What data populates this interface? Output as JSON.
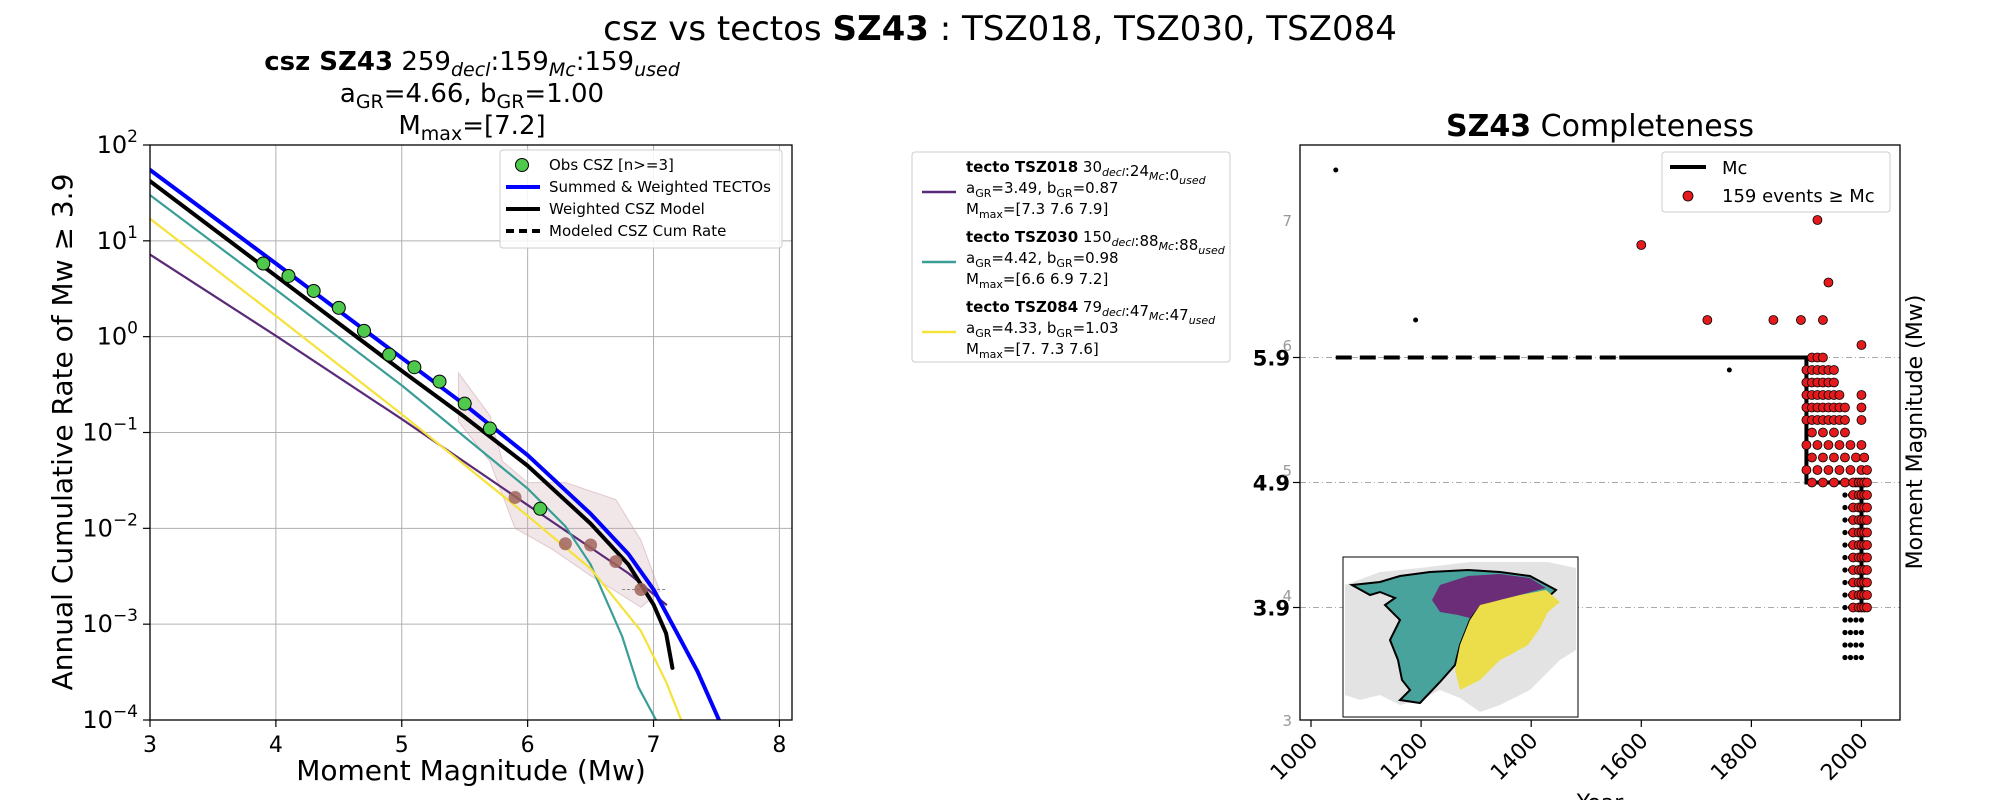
{
  "figure": {
    "title_prefix": "csz vs tectos ",
    "title_zone": "SZ43",
    "title_suffix": " : TSZ018, TSZ030, TSZ084"
  },
  "colors": {
    "obs": "#4ec94e",
    "obs_tecto": "#a0645a",
    "summed": "#0000ff",
    "weighted_csz": "#000000",
    "tecto_018": "#5a2a78",
    "tecto_030": "#3a9e96",
    "tecto_084": "#f5e23a",
    "red_points": "#e41a1c",
    "mc_line": "#000000",
    "inset_teal": "#47a39b",
    "inset_purple": "#6b2d78",
    "inset_yellow": "#ecdd4a",
    "inset_grey": "#e3e3e3"
  },
  "chart_data": [
    {
      "type": "line",
      "header": {
        "line1_bold": "csz SZ43",
        "line1_counts": [
          {
            "value": "259",
            "sub": "decl"
          },
          {
            "value": "159",
            "sub": "Mc"
          },
          {
            "value": "159",
            "sub": "used"
          }
        ],
        "line2": [
          {
            "text": "a",
            "sub": "GR",
            "value": "=4.66,"
          },
          {
            "text": "b",
            "sub": "GR",
            "value": "=1.00"
          }
        ],
        "line3": {
          "text": "M",
          "sub": "max",
          "value": "=[7.2]"
        }
      },
      "xlabel": "Moment Magnitude (Mw)",
      "ylabel": "Annual Cumulative Rate of Mw  ≥  3.9",
      "xlim": [
        3,
        8.1
      ],
      "ylim_log10": [
        -4,
        2
      ],
      "yscale": "log",
      "grid": true,
      "xticks": [
        "3",
        "4",
        "5",
        "6",
        "7",
        "8"
      ],
      "yticks": [
        {
          "base": "10",
          "exp": "2"
        },
        {
          "base": "10",
          "exp": "1"
        },
        {
          "base": "10",
          "exp": "0"
        },
        {
          "base": "10",
          "exp": "−1"
        },
        {
          "base": "10",
          "exp": "−2"
        },
        {
          "base": "10",
          "exp": "−3"
        },
        {
          "base": "10",
          "exp": "−4"
        }
      ],
      "legend_position": "top-right",
      "legend": [
        {
          "label": "Obs CSZ [n>=3]",
          "kind": "marker",
          "color_key": "obs"
        },
        {
          "label": "Summed & Weighted TECTOs",
          "kind": "line",
          "color_key": "summed"
        },
        {
          "label": "Weighted CSZ Model",
          "kind": "line",
          "color_key": "weighted_csz"
        },
        {
          "label": "Modeled CSZ Cum Rate",
          "kind": "dashed",
          "color_key": "weighted_csz"
        }
      ],
      "series": [
        {
          "key": "tsz018",
          "color_key": "tecto_018",
          "points": [
            [
              3.0,
              7.2
            ],
            [
              4.0,
              1.02
            ],
            [
              5.0,
              0.138
            ],
            [
              6.0,
              0.0175
            ],
            [
              6.8,
              0.0034
            ],
            [
              7.1,
              0.0016
            ]
          ]
        },
        {
          "key": "tsz030",
          "color_key": "tecto_030",
          "points": [
            [
              3.0,
              30
            ],
            [
              4.0,
              3.1
            ],
            [
              5.0,
              0.31
            ],
            [
              6.0,
              0.026
            ],
            [
              6.3,
              0.0105
            ],
            [
              6.5,
              0.0042
            ],
            [
              6.75,
              0.00075
            ],
            [
              6.88,
              0.00022
            ],
            [
              7.02,
              0.0001
            ]
          ]
        },
        {
          "key": "tsz084",
          "color_key": "tecto_084",
          "points": [
            [
              3.0,
              17
            ],
            [
              4.0,
              1.65
            ],
            [
              5.0,
              0.155
            ],
            [
              6.0,
              0.0135
            ],
            [
              6.5,
              0.0038
            ],
            [
              6.9,
              0.00085
            ],
            [
              7.1,
              0.00025
            ],
            [
              7.22,
              0.0001
            ]
          ]
        },
        {
          "key": "summed",
          "color_key": "summed",
          "width": 4,
          "points": [
            [
              3.0,
              55
            ],
            [
              4.0,
              5.8
            ],
            [
              5.0,
              0.6
            ],
            [
              5.5,
              0.195
            ],
            [
              6.0,
              0.058
            ],
            [
              6.5,
              0.0142
            ],
            [
              6.8,
              0.0054
            ],
            [
              7.0,
              0.0023
            ],
            [
              7.2,
              0.00075
            ],
            [
              7.35,
              0.00032
            ],
            [
              7.52,
              0.0001
            ]
          ]
        },
        {
          "key": "weighted_csz",
          "color_key": "weighted_csz",
          "width": 4,
          "points": [
            [
              3.0,
              42
            ],
            [
              4.0,
              4.3
            ],
            [
              5.0,
              0.44
            ],
            [
              5.5,
              0.145
            ],
            [
              6.0,
              0.045
            ],
            [
              6.5,
              0.0112
            ],
            [
              6.8,
              0.0042
            ],
            [
              7.0,
              0.0016
            ],
            [
              7.1,
              0.0008
            ],
            [
              7.15,
              0.00035
            ]
          ]
        }
      ],
      "band": {
        "upper": [
          [
            5.45,
            0.42
          ],
          [
            5.7,
            0.15
          ],
          [
            5.8,
            0.05
          ],
          [
            6.0,
            0.03
          ],
          [
            6.3,
            0.03
          ],
          [
            6.7,
            0.02
          ],
          [
            6.9,
            0.0075
          ],
          [
            7.05,
            0.0022
          ]
        ],
        "lower": [
          [
            7.05,
            0.0022
          ],
          [
            6.9,
            0.0015
          ],
          [
            6.7,
            0.0022
          ],
          [
            6.5,
            0.0032
          ],
          [
            6.2,
            0.006
          ],
          [
            5.9,
            0.01
          ],
          [
            5.7,
            0.05
          ],
          [
            5.45,
            0.13
          ]
        ]
      },
      "obs_points": [
        [
          3.9,
          5.8
        ],
        [
          4.1,
          4.3
        ],
        [
          4.3,
          3.0
        ],
        [
          4.5,
          2.0
        ],
        [
          4.7,
          1.15
        ],
        [
          4.9,
          0.65
        ],
        [
          5.1,
          0.48
        ],
        [
          5.3,
          0.34
        ],
        [
          5.5,
          0.2
        ],
        [
          5.7,
          0.11
        ],
        [
          6.1,
          0.016
        ]
      ],
      "obs_tecto_points": [
        [
          5.9,
          0.021
        ],
        [
          6.3,
          0.0069
        ],
        [
          6.5,
          0.0067
        ],
        [
          6.7,
          0.0045
        ],
        [
          6.9,
          0.0023
        ]
      ]
    },
    {
      "type": "scatter",
      "title_bold": "SZ43",
      "title_rest": " Completeness",
      "xlabel": "Year",
      "ylabel": "Moment Magnitude (Mw)",
      "xlim": [
        980,
        2070
      ],
      "ylim": [
        3,
        7.6
      ],
      "xticks": [
        "1000",
        "1200",
        "1400",
        "1600",
        "1800",
        "2000"
      ],
      "yticks_small": [
        "3",
        "4",
        "5",
        "6",
        "7"
      ],
      "yticks_bold": [
        "3.9",
        "4.9",
        "5.9"
      ],
      "legend_position": "top-right",
      "legend": [
        {
          "label": "Mc",
          "kind": "line"
        },
        {
          "label": "159 events  ≥  Mc",
          "kind": "marker"
        }
      ],
      "mc_solid": [
        [
          1560,
          5.9
        ],
        [
          1900,
          5.9
        ],
        [
          1900,
          4.9
        ],
        [
          2000,
          4.9
        ],
        [
          2000,
          3.9
        ]
      ],
      "mc_dashed": [
        [
          1045,
          5.9
        ],
        [
          1560,
          5.9
        ]
      ],
      "red_points_outliers": [
        [
          1600,
          6.8
        ],
        [
          1920,
          7.0
        ],
        [
          1940,
          6.5
        ],
        [
          1720,
          6.2
        ],
        [
          1840,
          6.2
        ],
        [
          1890,
          6.2
        ],
        [
          1930,
          6.2
        ],
        [
          2000,
          6.0
        ]
      ],
      "red_cluster": {
        "x_cols": [
          1900,
          1910,
          1920,
          1930,
          1940,
          1950,
          1960,
          1970,
          1980,
          1990,
          2000,
          2005,
          2010
        ],
        "upper": [
          5.8,
          5.9,
          5.9,
          5.9,
          5.8,
          5.8,
          5.6,
          5.5,
          5.3,
          5.2,
          5.6,
          5.2,
          5.0
        ]
      },
      "red_cluster_low": {
        "x_cols": [
          1985,
          1995,
          2000,
          2005,
          2010
        ],
        "from": 4.9,
        "to": 3.9
      },
      "black_small": [
        [
          1045,
          7.4
        ],
        [
          1190,
          6.2
        ],
        [
          1760,
          5.8
        ]
      ],
      "black_column": {
        "x_cols": [
          1970,
          1980,
          1990,
          2000
        ],
        "from": 3.5,
        "to": 4.8
      }
    },
    {
      "type": "legend",
      "entries": [
        {
          "color_key": "tecto_018",
          "name": "tecto TSZ018",
          "counts": [
            {
              "value": " 30",
              "sub": "decl"
            },
            {
              "value": ":24",
              "sub": "Mc"
            },
            {
              "value": ":0",
              "sub": "used"
            }
          ],
          "ab": [
            {
              "text": "a",
              "sub": "GR",
              "value": "=3.49,  "
            },
            {
              "text": "b",
              "sub": "GR",
              "value": "=0.87"
            }
          ],
          "mmax": {
            "text": "M",
            "sub": "max",
            "value": "=[7.3 7.6 7.9]"
          }
        },
        {
          "color_key": "tecto_030",
          "name": "tecto TSZ030",
          "counts": [
            {
              "value": " 150",
              "sub": "decl"
            },
            {
              "value": ":88",
              "sub": "Mc"
            },
            {
              "value": ":88",
              "sub": "used"
            }
          ],
          "ab": [
            {
              "text": "a",
              "sub": "GR",
              "value": "=4.42,  "
            },
            {
              "text": "b",
              "sub": "GR",
              "value": "=0.98"
            }
          ],
          "mmax": {
            "text": "M",
            "sub": "max",
            "value": "=[6.6 6.9 7.2]"
          }
        },
        {
          "color_key": "tecto_084",
          "name": "tecto TSZ084",
          "counts": [
            {
              "value": " 79",
              "sub": "decl"
            },
            {
              "value": ":47",
              "sub": "Mc"
            },
            {
              "value": ":47",
              "sub": "used"
            }
          ],
          "ab": [
            {
              "text": "a",
              "sub": "GR",
              "value": "=4.33,  "
            },
            {
              "text": "b",
              "sub": "GR",
              "value": "=1.03"
            }
          ],
          "mmax": {
            "text": "M",
            "sub": "max",
            "value": "=[7.  7.3 7.6]"
          }
        }
      ]
    }
  ]
}
